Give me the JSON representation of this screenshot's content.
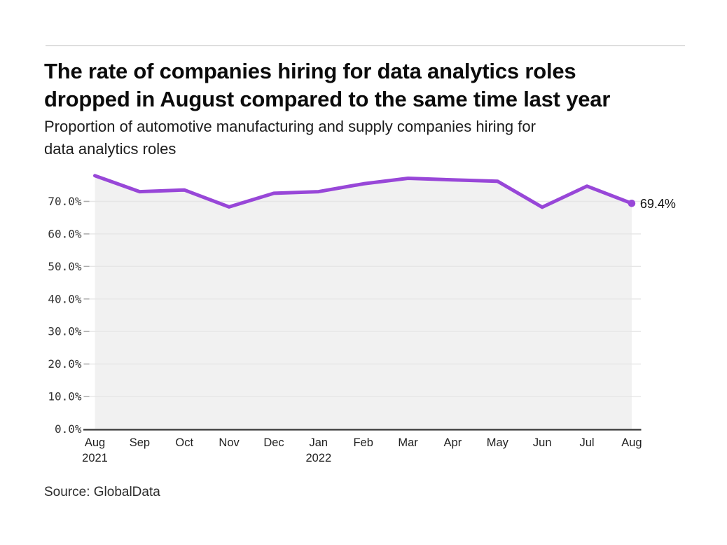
{
  "header": {
    "title_lines": [
      "The rate of companies hiring for data analytics roles",
      "dropped in August compared to the same time last year"
    ],
    "subtitle_lines": [
      "Proportion of automotive manufacturing and supply companies hiring for",
      "data analytics roles"
    ]
  },
  "chart_data": {
    "type": "line",
    "title": "Proportion of automotive manufacturing and supply companies hiring for data analytics roles",
    "categories": [
      "Aug",
      "Sep",
      "Oct",
      "Nov",
      "Dec",
      "Jan",
      "Feb",
      "Mar",
      "Apr",
      "May",
      "Jun",
      "Jul",
      "Aug"
    ],
    "year_labels": [
      "2021",
      "",
      "",
      "",
      "",
      "2022",
      "",
      "",
      "",
      "",
      "",
      "",
      ""
    ],
    "x_full": [
      "Aug 2021",
      "Sep 2021",
      "Oct 2021",
      "Nov 2021",
      "Dec 2021",
      "Jan 2022",
      "Feb 2022",
      "Mar 2022",
      "Apr 2022",
      "May 2022",
      "Jun 2022",
      "Jul 2022",
      "Aug 2022"
    ],
    "series": [
      {
        "name": "Proportion of companies hiring for data analytics roles",
        "values": [
          77.9,
          73.0,
          73.5,
          68.3,
          72.5,
          73.0,
          75.4,
          77.1,
          76.6,
          76.2,
          68.2,
          74.7,
          69.4
        ]
      }
    ],
    "last_value_label": "69.4%",
    "y_axis": {
      "tick_labels": [
        "0.0%",
        "10.0%",
        "20.0%",
        "30.0%",
        "40.0%",
        "50.0%",
        "60.0%",
        "70.0%"
      ],
      "tick_values": [
        0,
        10,
        20,
        30,
        40,
        50,
        60,
        70
      ],
      "range": [
        0,
        80
      ]
    },
    "xlabel": "",
    "ylabel": "",
    "grid": true,
    "legend": "none",
    "style": {
      "line_color": "#9847d8",
      "point_color": "#9847d8",
      "area_fill": "#f1f1f1",
      "gridline_color": "#e6e6e6",
      "axis_color": "#4c4c4c",
      "tick_color": "#ababab"
    }
  },
  "footer": {
    "source": "Source: GlobalData"
  }
}
